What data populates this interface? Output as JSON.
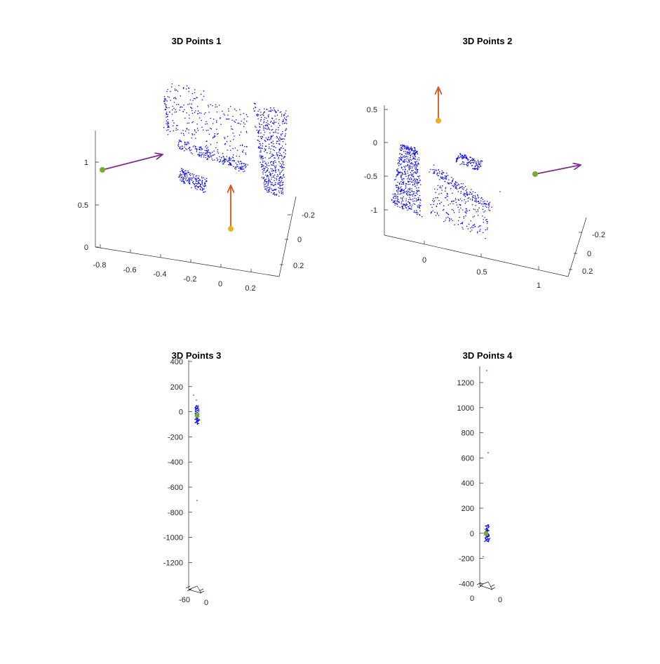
{
  "colors": {
    "points": "#0000ff",
    "camera_a": "#77ac30",
    "camera_b": "#edb120",
    "arrow_a": "#7e2f8e",
    "arrow_b": "#d95319",
    "axis": "#262626"
  },
  "chart_data": [
    {
      "type": "scatter",
      "title": "3D Points 1",
      "xlabel": "",
      "ylabel": "",
      "zlabel": "",
      "x_ticks": [
        "-0.8",
        "-0.6",
        "-0.4",
        "-0.2",
        "0",
        "0.2"
      ],
      "y_ticks": [
        "-0.2",
        "0",
        "0.2"
      ],
      "z_ticks": [
        "0",
        "0.5",
        "1"
      ],
      "xlim": [
        -0.85,
        0.3
      ],
      "ylim": [
        -0.3,
        0.3
      ],
      "zlim": [
        0,
        1.35
      ],
      "cameras": [
        {
          "name": "",
          "color": "camera_a",
          "position": [
            -0.8,
            0.0,
            0.9
          ],
          "direction": "toward +x"
        },
        {
          "name": "",
          "color": "camera_b",
          "position": [
            0.0,
            0.0,
            0.2
          ],
          "direction": "up"
        }
      ],
      "point_cloud": "dense planar clusters (approx. 1500 points)"
    },
    {
      "type": "scatter",
      "title": "3D Points 2",
      "xlabel": "",
      "ylabel": "",
      "zlabel": "",
      "x_ticks": [
        "0",
        "0.5",
        "1"
      ],
      "y_ticks": [
        "-0.2",
        "0",
        "0.2"
      ],
      "z_ticks": [
        "0.5",
        "0",
        "-0.5",
        "-1"
      ],
      "xlim": [
        -0.3,
        1.2
      ],
      "ylim": [
        -0.3,
        0.3
      ],
      "zlim": [
        -1.4,
        0.6
      ],
      "cameras": [
        {
          "name": "",
          "color": "camera_b",
          "position": [
            0.1,
            0.0,
            0.3
          ],
          "direction": "up"
        },
        {
          "name": "",
          "color": "camera_a",
          "position": [
            0.95,
            0.0,
            -0.45
          ],
          "direction": "toward +x"
        }
      ],
      "point_cloud": "dense planar clusters (approx. 1500 points)"
    },
    {
      "type": "scatter",
      "title": "3D Points 3",
      "xlabel": "",
      "ylabel": "",
      "zlabel": "",
      "x_ticks": [
        "-60",
        "0"
      ],
      "z_ticks": [
        "400",
        "200",
        "0",
        "-200",
        "-400",
        "-600",
        "-800",
        "-1000",
        "-1200"
      ],
      "zlim": [
        -1400,
        400
      ],
      "cameras": [
        {
          "name": "",
          "color": "camera_a",
          "position": [
            0,
            0,
            -30
          ],
          "direction": "none"
        }
      ],
      "outliers": [
        {
          "z": -700
        },
        {
          "z": 150
        }
      ],
      "point_cloud": "thin vertical cluster near z = 0"
    },
    {
      "type": "scatter",
      "title": "3D Points 4",
      "xlabel": "",
      "ylabel": "",
      "zlabel": "",
      "x_ticks": [
        "0",
        "0"
      ],
      "z_ticks": [
        "1200",
        "1000",
        "800",
        "600",
        "400",
        "200",
        "0",
        "-200",
        "-400"
      ],
      "zlim": [
        -400,
        1300
      ],
      "cameras": [
        {
          "name": "",
          "color": "camera_a",
          "position": [
            0,
            0,
            0
          ],
          "direction": "none"
        }
      ],
      "outliers": [
        {
          "z": 1290
        },
        {
          "z": 640
        },
        {
          "z": -180
        }
      ],
      "point_cloud": "thin vertical cluster near z = 0"
    }
  ]
}
